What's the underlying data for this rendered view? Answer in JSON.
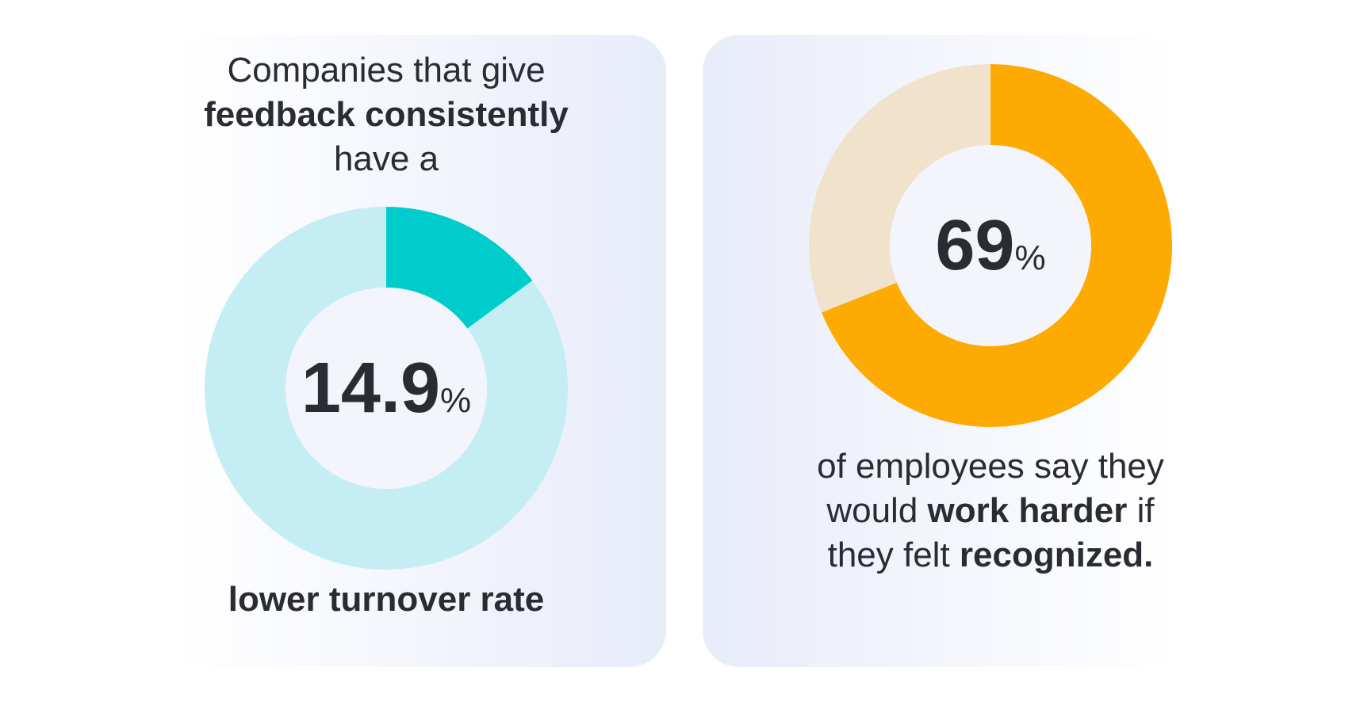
{
  "chart_data": [
    {
      "type": "donut",
      "caption_top": [
        [
          {
            "text": "Companies that give"
          }
        ],
        [
          {
            "text": "feedback consistently",
            "bold": true
          }
        ],
        [
          {
            "text": "have a"
          }
        ]
      ],
      "caption_bottom": [
        [
          {
            "text": "lower turnover rate",
            "bold": true
          }
        ]
      ],
      "values": [
        14.9,
        85.1
      ],
      "value_labels": [
        "14.9%",
        null
      ],
      "colors": [
        "#00cdcb",
        "#c4eef3"
      ]
    },
    {
      "type": "donut",
      "caption_top": [],
      "caption_bottom": [
        [
          {
            "text": "of employees say they"
          }
        ],
        [
          {
            "text": "would "
          },
          {
            "text": "work harder",
            "bold": true
          },
          {
            "text": " if"
          }
        ],
        [
          {
            "text": "they felt "
          },
          {
            "text": "recognized.",
            "bold": true
          }
        ]
      ],
      "values": [
        69,
        31
      ],
      "value_labels": [
        "69%",
        null
      ],
      "colors": [
        "#fdab03",
        "#f1e2cb"
      ]
    }
  ]
}
